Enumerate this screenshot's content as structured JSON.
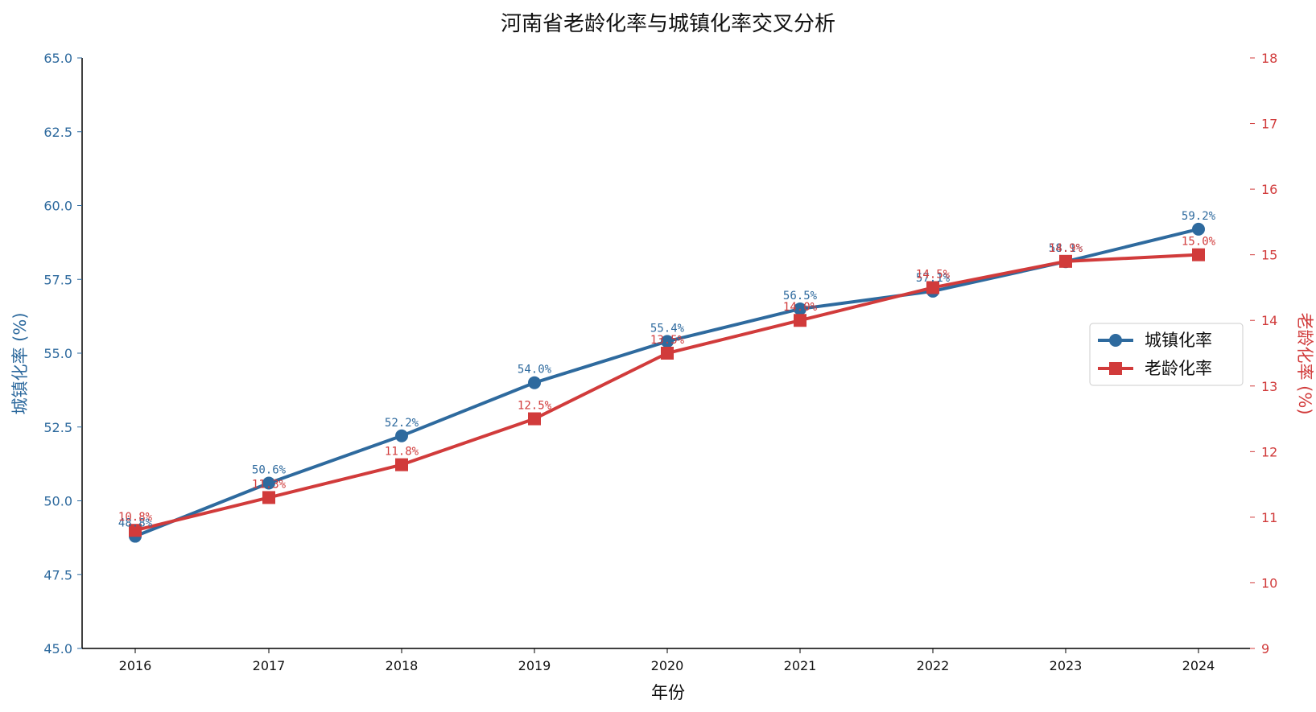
{
  "chart_data": {
    "type": "line",
    "title": "河南省老龄化率与城镇化率交叉分析",
    "xlabel": "年份",
    "ylabel_left": "城镇化率 (%)",
    "ylabel_right": "老龄化率 (%)",
    "x": [
      "2016",
      "2017",
      "2018",
      "2019",
      "2020",
      "2021",
      "2022",
      "2023",
      "2024"
    ],
    "ylim_left": [
      45.0,
      65.0
    ],
    "yticks_left": [
      "45.0",
      "47.5",
      "50.0",
      "52.5",
      "55.0",
      "57.5",
      "60.0",
      "62.5",
      "65.0"
    ],
    "ylim_right": [
      9,
      18
    ],
    "yticks_right": [
      "9",
      "10",
      "11",
      "12",
      "13",
      "14",
      "15",
      "16",
      "17",
      "18"
    ],
    "grid": false,
    "legend_position": "center-right",
    "series": [
      {
        "name": "城镇化率",
        "axis": "left",
        "color": "#2e6a9e",
        "marker": "circle",
        "values": [
          48.8,
          50.6,
          52.2,
          54.0,
          55.4,
          56.5,
          57.1,
          58.1,
          59.2
        ],
        "labels": [
          "48.8%",
          "50.6%",
          "52.2%",
          "54.0%",
          "55.4%",
          "56.5%",
          "57.1%",
          "58.1%",
          "59.2%"
        ]
      },
      {
        "name": "老龄化率",
        "axis": "right",
        "color": "#d13b3b",
        "marker": "square",
        "values": [
          10.8,
          11.3,
          11.8,
          12.5,
          13.5,
          14.0,
          14.5,
          14.9,
          15.0
        ],
        "labels": [
          "10.8%",
          "11.3%",
          "11.8%",
          "12.5%",
          "13.5%",
          "14.0%",
          "14.5%",
          "14.9%",
          "15.0%"
        ]
      }
    ]
  }
}
